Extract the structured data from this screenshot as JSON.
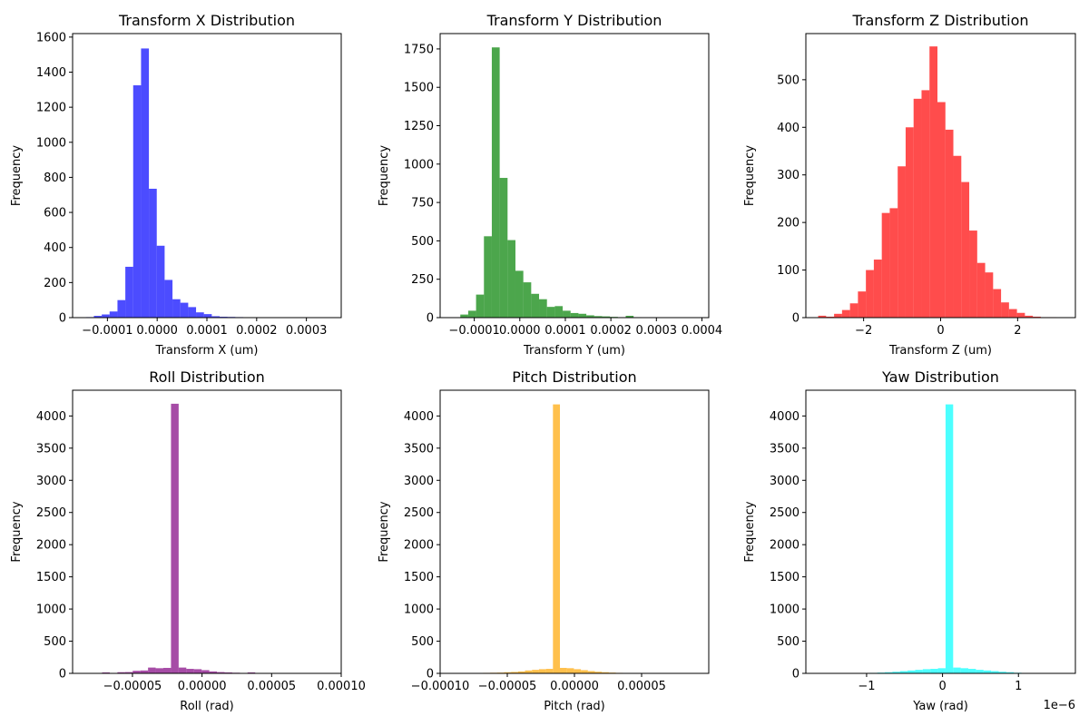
{
  "chart_data": [
    {
      "type": "bar",
      "title": "Transform X Distribution",
      "xlabel": "Transform X (um)",
      "ylabel": "Frequency",
      "color": "#0000ff",
      "xlim": [
        -0.00017,
        0.00037
      ],
      "ylim": [
        0,
        1620
      ],
      "xticks": [
        -0.0001,
        0.0,
        0.0001,
        0.0002,
        0.0003
      ],
      "xtick_labels": [
        "−0.0001",
        "0.0000",
        "0.0001",
        "0.0002",
        "0.0003"
      ],
      "yticks": [
        0,
        200,
        400,
        600,
        800,
        1000,
        1200,
        1400,
        1600
      ],
      "ytick_labels": [
        "0",
        "200",
        "400",
        "600",
        "800",
        "1000",
        "1200",
        "1400",
        "1600"
      ],
      "grid": false,
      "legend": "none",
      "x_offset_label": "",
      "bins": {
        "start": -0.000143,
        "width": 1.58e-05
      },
      "values": [
        3,
        10,
        18,
        35,
        100,
        290,
        1325,
        1535,
        735,
        410,
        215,
        105,
        85,
        60,
        30,
        20,
        8,
        5,
        4,
        3,
        2,
        1,
        1,
        1,
        1,
        1,
        1,
        1,
        0,
        0,
        0
      ]
    },
    {
      "type": "bar",
      "title": "Transform Y Distribution",
      "xlabel": "Transform Y (um)",
      "ylabel": "Frequency",
      "color": "#008000",
      "xlim": [
        -0.000175,
        0.000415
      ],
      "ylim": [
        0,
        1850
      ],
      "xticks": [
        -0.0001,
        0.0,
        0.0001,
        0.0002,
        0.0003,
        0.0004
      ],
      "xtick_labels": [
        "−0.0001",
        "0.0000",
        "0.0001",
        "0.0002",
        "0.0003",
        "0.0004"
      ],
      "yticks": [
        0,
        250,
        500,
        750,
        1000,
        1250,
        1500,
        1750
      ],
      "ytick_labels": [
        "0",
        "250",
        "500",
        "750",
        "1000",
        "1250",
        "1500",
        "1750"
      ],
      "grid": false,
      "legend": "none",
      "x_offset_label": "",
      "bins": {
        "start": -0.000148,
        "width": 1.73e-05
      },
      "values": [
        2,
        20,
        45,
        150,
        530,
        1760,
        910,
        505,
        305,
        230,
        155,
        120,
        70,
        75,
        45,
        30,
        25,
        15,
        10,
        8,
        5,
        3,
        12,
        3,
        2,
        2,
        2,
        1,
        1,
        1,
        1,
        1
      ]
    },
    {
      "type": "bar",
      "title": "Transform Z Distribution",
      "xlabel": "Transform Z (um)",
      "ylabel": "Frequency",
      "color": "#ff0000",
      "xlim": [
        -3.5,
        3.5
      ],
      "ylim": [
        0,
        597
      ],
      "xticks": [
        -2,
        0,
        2
      ],
      "xtick_labels": [
        "−2",
        "0",
        "2"
      ],
      "yticks": [
        0,
        100,
        200,
        300,
        400,
        500
      ],
      "ytick_labels": [
        "0",
        "100",
        "200",
        "300",
        "400",
        "500"
      ],
      "grid": false,
      "legend": "none",
      "x_offset_label": "",
      "bins": {
        "start": -3.18,
        "width": 0.2065
      },
      "values": [
        4,
        2,
        8,
        16,
        30,
        55,
        100,
        122,
        220,
        230,
        318,
        400,
        460,
        478,
        570,
        453,
        395,
        340,
        285,
        183,
        115,
        95,
        60,
        32,
        18,
        10,
        4,
        2,
        1,
        1
      ]
    },
    {
      "type": "bar",
      "title": "Roll Distribution",
      "xlabel": "Roll (rad)",
      "ylabel": "Frequency",
      "color": "#800080",
      "xlim": [
        -9.3e-05,
        0.0001
      ],
      "ylim": [
        0,
        4400
      ],
      "xticks": [
        -5e-05,
        0.0,
        5e-05,
        0.0001
      ],
      "xtick_labels": [
        "−0.00005",
        "0.00000",
        "0.00005",
        "0.00010"
      ],
      "yticks": [
        0,
        500,
        1000,
        1500,
        2000,
        2500,
        3000,
        3500,
        4000
      ],
      "ytick_labels": [
        "0",
        "500",
        "1000",
        "1500",
        "2000",
        "2500",
        "3000",
        "3500",
        "4000"
      ],
      "grid": false,
      "legend": "none",
      "x_offset_label": "",
      "bins": {
        "start": -8.28e-05,
        "width": 5.5e-06
      },
      "values": [
        1,
        2,
        15,
        5,
        18,
        20,
        40,
        45,
        90,
        80,
        85,
        4190,
        90,
        70,
        65,
        50,
        30,
        20,
        15,
        10,
        5,
        15,
        4,
        2,
        1,
        1
      ]
    },
    {
      "type": "bar",
      "title": "Pitch Distribution",
      "xlabel": "Pitch (rad)",
      "ylabel": "Frequency",
      "color": "#ffa500",
      "xlim": [
        -0.0001,
        0.0001
      ],
      "ylim": [
        0,
        4400
      ],
      "xticks": [
        -0.0001,
        -5e-05,
        0.0,
        5e-05
      ],
      "xtick_labels": [
        "−0.00010",
        "−0.00005",
        "0.00000",
        "0.00005"
      ],
      "yticks": [
        0,
        500,
        1000,
        1500,
        2000,
        2500,
        3000,
        3500,
        4000
      ],
      "ytick_labels": [
        "0",
        "500",
        "1000",
        "1500",
        "2000",
        "2500",
        "3000",
        "3500",
        "4000"
      ],
      "grid": false,
      "legend": "none",
      "x_offset_label": "",
      "bins": {
        "start": -8.36e-05,
        "width": 5.2e-06
      },
      "values": [
        1,
        2,
        5,
        8,
        10,
        12,
        18,
        22,
        30,
        45,
        55,
        65,
        70,
        4180,
        85,
        80,
        65,
        50,
        35,
        25,
        18,
        12,
        8,
        5,
        3,
        2
      ]
    },
    {
      "type": "bar",
      "title": "Yaw Distribution",
      "xlabel": "Yaw (rad)",
      "ylabel": "Frequency",
      "color": "#00ffff",
      "xlim": [
        -1.8,
        1.75
      ],
      "ylim": [
        0,
        4400
      ],
      "xticks": [
        -1,
        0,
        1
      ],
      "xtick_labels": [
        "−1",
        "0",
        "1"
      ],
      "yticks": [
        0,
        500,
        1000,
        1500,
        2000,
        2500,
        3000,
        3500,
        4000
      ],
      "ytick_labels": [
        "0",
        "500",
        "1000",
        "1500",
        "2000",
        "2500",
        "3000",
        "3500",
        "4000"
      ],
      "grid": false,
      "legend": "none",
      "x_offset_label": "1e−6",
      "bins": {
        "start": -1.36,
        "width": 0.1
      },
      "values": [
        1,
        2,
        4,
        6,
        8,
        12,
        18,
        25,
        35,
        45,
        55,
        65,
        70,
        80,
        4180,
        90,
        80,
        70,
        55,
        45,
        35,
        25,
        18,
        10,
        6,
        4,
        3,
        2
      ]
    }
  ]
}
